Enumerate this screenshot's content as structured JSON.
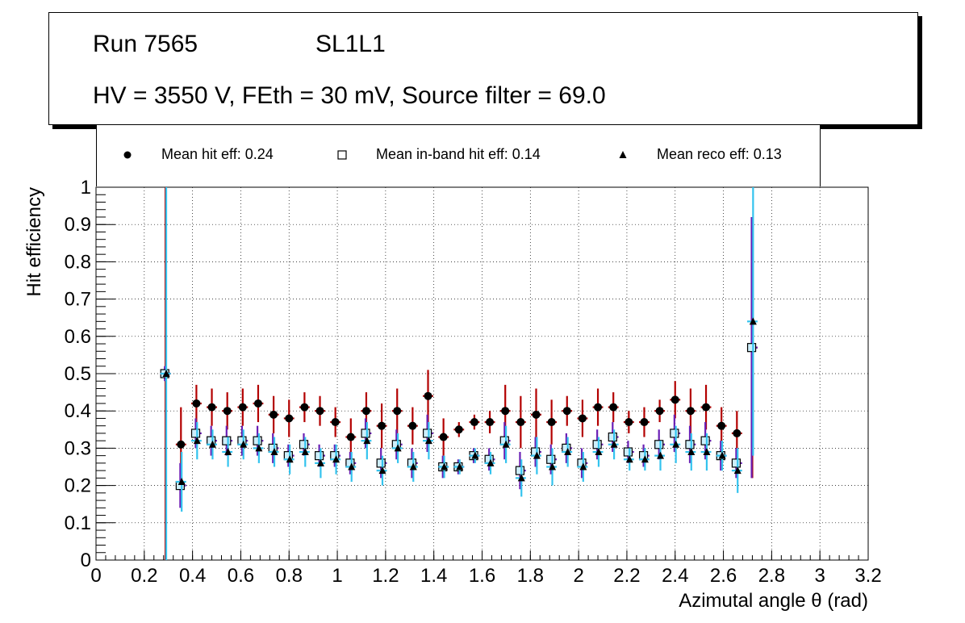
{
  "header": {
    "run_label": "Run 7565",
    "layer_label": "SL1L1",
    "conditions": "HV = 3550 V, FEth = 30 mV, Source filter = 69.0"
  },
  "legend": {
    "items": [
      {
        "label": "Mean hit  eff: 0.24",
        "marker": "filled-circle-icon"
      },
      {
        "label": "Mean in-band hit eff: 0.14",
        "marker": "open-square-icon"
      },
      {
        "label": "Mean reco eff: 0.13",
        "marker": "filled-triangle-icon"
      }
    ]
  },
  "chart_data": {
    "type": "scatter",
    "title": "",
    "xlabel": "Azimutal angle θ (rad)",
    "ylabel": "Hit efficiency",
    "xlim": [
      0,
      3.2
    ],
    "ylim": [
      0,
      1
    ],
    "x_ticks": [
      "0",
      "0.2",
      "0.4",
      "0.6",
      "0.8",
      "1",
      "1.2",
      "1.4",
      "1.6",
      "1.8",
      "2",
      "2.2",
      "2.4",
      "2.6",
      "2.8",
      "3",
      "3.2"
    ],
    "y_ticks": [
      "0",
      "0.1",
      "0.2",
      "0.3",
      "0.4",
      "0.5",
      "0.6",
      "0.7",
      "0.8",
      "0.9",
      "1"
    ],
    "grid": true,
    "x_bin_halfwidth": 0.0215,
    "x": [
      0.288,
      0.352,
      0.416,
      0.48,
      0.544,
      0.608,
      0.672,
      0.736,
      0.8,
      0.864,
      0.928,
      0.992,
      1.056,
      1.12,
      1.184,
      1.248,
      1.312,
      1.376,
      1.44,
      1.504,
      1.568,
      1.632,
      1.696,
      1.76,
      1.824,
      1.888,
      1.952,
      2.016,
      2.08,
      2.144,
      2.208,
      2.272,
      2.336,
      2.4,
      2.464,
      2.528,
      2.592,
      2.656,
      2.72
    ],
    "series": [
      {
        "name": "Mean hit  eff: 0.24",
        "marker": "circle",
        "color": "#000000",
        "error_color": "#b30000",
        "values": [
          0.5,
          0.31,
          0.42,
          0.41,
          0.4,
          0.41,
          0.42,
          0.39,
          0.38,
          0.41,
          0.4,
          0.37,
          0.33,
          0.4,
          0.36,
          0.4,
          0.36,
          0.44,
          0.33,
          0.35,
          0.37,
          0.37,
          0.4,
          0.37,
          0.39,
          0.37,
          0.4,
          0.38,
          0.41,
          0.41,
          0.37,
          0.37,
          0.4,
          0.43,
          0.4,
          0.41,
          0.36,
          0.34,
          0.57
        ],
        "errors": [
          0.5,
          0.1,
          0.05,
          0.05,
          0.05,
          0.05,
          0.05,
          0.05,
          0.05,
          0.04,
          0.04,
          0.04,
          0.05,
          0.05,
          0.06,
          0.06,
          0.05,
          0.07,
          0.05,
          0.02,
          0.02,
          0.03,
          0.07,
          0.07,
          0.07,
          0.06,
          0.04,
          0.05,
          0.05,
          0.04,
          0.03,
          0.04,
          0.03,
          0.05,
          0.06,
          0.06,
          0.05,
          0.06,
          0.35
        ]
      },
      {
        "name": "Mean in-band hit eff: 0.14",
        "marker": "square",
        "color": "#000000",
        "fill": "#cdeefb",
        "error_color": "#6a1fb5",
        "values": [
          0.5,
          0.2,
          0.34,
          0.32,
          0.32,
          0.32,
          0.32,
          0.3,
          0.28,
          0.31,
          0.28,
          0.28,
          0.26,
          0.34,
          0.26,
          0.31,
          0.26,
          0.34,
          0.25,
          0.25,
          0.28,
          0.27,
          0.32,
          0.24,
          0.29,
          0.27,
          0.3,
          0.26,
          0.31,
          0.33,
          0.29,
          0.28,
          0.31,
          0.34,
          0.31,
          0.32,
          0.28,
          0.26,
          0.57
        ],
        "errors": [
          0.02,
          0.06,
          0.04,
          0.04,
          0.04,
          0.04,
          0.04,
          0.04,
          0.03,
          0.03,
          0.03,
          0.03,
          0.03,
          0.04,
          0.04,
          0.04,
          0.04,
          0.05,
          0.03,
          0.02,
          0.02,
          0.03,
          0.05,
          0.05,
          0.04,
          0.04,
          0.04,
          0.04,
          0.04,
          0.04,
          0.03,
          0.03,
          0.04,
          0.05,
          0.05,
          0.05,
          0.04,
          0.04,
          0.35
        ]
      },
      {
        "name": "Mean reco eff: 0.13",
        "marker": "triangle",
        "color": "#000000",
        "error_color": "#33c3ee",
        "values": [
          0.5,
          0.21,
          0.32,
          0.31,
          0.29,
          0.31,
          0.3,
          0.29,
          0.27,
          0.29,
          0.26,
          0.27,
          0.25,
          0.32,
          0.24,
          0.3,
          0.25,
          0.32,
          0.25,
          0.25,
          0.28,
          0.26,
          0.31,
          0.22,
          0.28,
          0.25,
          0.29,
          0.25,
          0.29,
          0.31,
          0.27,
          0.27,
          0.28,
          0.31,
          0.29,
          0.29,
          0.28,
          0.24,
          0.64
        ],
        "errors": [
          0.5,
          0.08,
          0.05,
          0.04,
          0.04,
          0.04,
          0.04,
          0.04,
          0.04,
          0.04,
          0.04,
          0.04,
          0.04,
          0.05,
          0.04,
          0.04,
          0.04,
          0.05,
          0.03,
          0.02,
          0.02,
          0.03,
          0.05,
          0.05,
          0.05,
          0.05,
          0.04,
          0.04,
          0.04,
          0.04,
          0.03,
          0.03,
          0.04,
          0.05,
          0.05,
          0.05,
          0.04,
          0.06,
          0.36
        ]
      }
    ]
  }
}
